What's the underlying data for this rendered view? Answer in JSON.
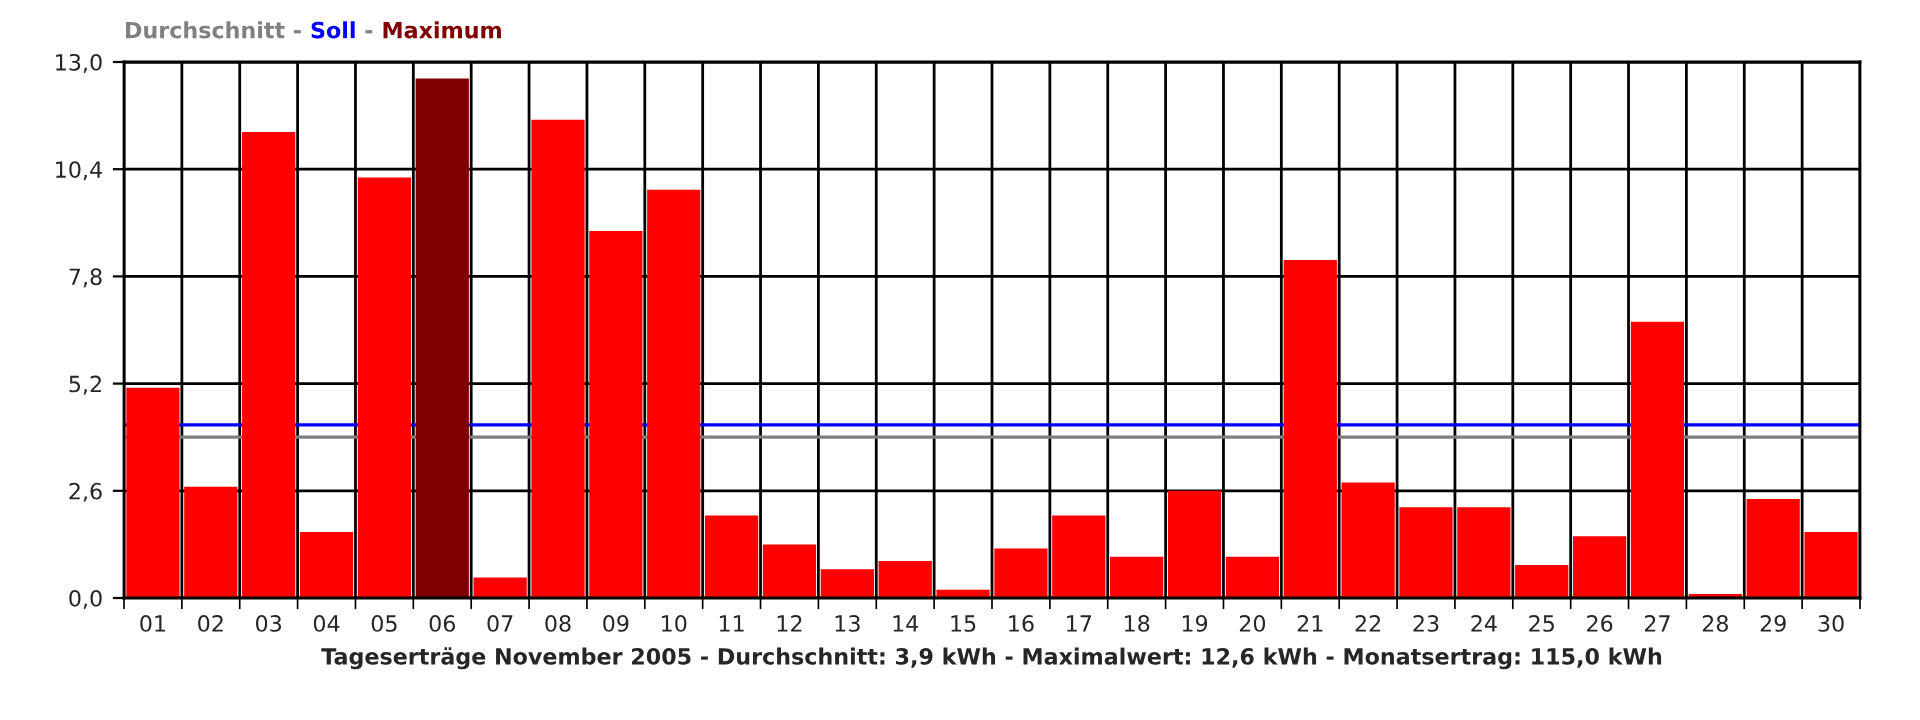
{
  "chart_data": {
    "type": "bar",
    "xlabel": "Tageserträge November 2005 - Durchschnitt: 3,9 kWh - Maximalwert: 12,6 kWh - Monatsertrag: 115,0 kWh",
    "categories": [
      "01",
      "02",
      "03",
      "04",
      "05",
      "06",
      "07",
      "08",
      "09",
      "10",
      "11",
      "12",
      "13",
      "14",
      "15",
      "16",
      "17",
      "18",
      "19",
      "20",
      "21",
      "22",
      "23",
      "24",
      "25",
      "26",
      "27",
      "28",
      "29",
      "30"
    ],
    "values": [
      5.1,
      2.7,
      11.3,
      1.6,
      10.2,
      12.6,
      0.5,
      11.6,
      8.9,
      9.9,
      2.0,
      1.3,
      0.7,
      0.9,
      0.2,
      1.2,
      2.0,
      1.0,
      2.6,
      1.0,
      8.2,
      2.8,
      2.2,
      2.2,
      0.8,
      1.5,
      6.7,
      0.1,
      2.4,
      1.6
    ],
    "colors": [
      "#ff0000",
      "#ff0000",
      "#ff0000",
      "#ff0000",
      "#ff0000",
      "#800000",
      "#ff0000",
      "#ff0000",
      "#ff0000",
      "#ff0000",
      "#ff0000",
      "#ff0000",
      "#ff0000",
      "#ff0000",
      "#ff0000",
      "#ff0000",
      "#ff0000",
      "#ff0000",
      "#ff0000",
      "#ff0000",
      "#ff0000",
      "#ff0000",
      "#ff0000",
      "#ff0000",
      "#ff0000",
      "#ff0000",
      "#ff0000",
      "#ff0000",
      "#ff0000",
      "#ff0000"
    ],
    "ylim": [
      0,
      13
    ],
    "yticks": [
      {
        "value": 0,
        "label": "0,0"
      },
      {
        "value": 2.6,
        "label": "2,6"
      },
      {
        "value": 5.2,
        "label": "5,2"
      },
      {
        "value": 7.8,
        "label": "7,8"
      },
      {
        "value": 10.4,
        "label": "10,4"
      },
      {
        "value": 13,
        "label": "13,0"
      }
    ],
    "grid": true,
    "ref_lines": [
      {
        "axis": "y",
        "value": 3.9,
        "label": "Durchschnitt",
        "color": "#808080"
      },
      {
        "axis": "y",
        "value": 4.2,
        "label": "Soll",
        "color": "#0000ff"
      }
    ],
    "annotations": [
      "Maximum",
      "-",
      "-"
    ]
  }
}
